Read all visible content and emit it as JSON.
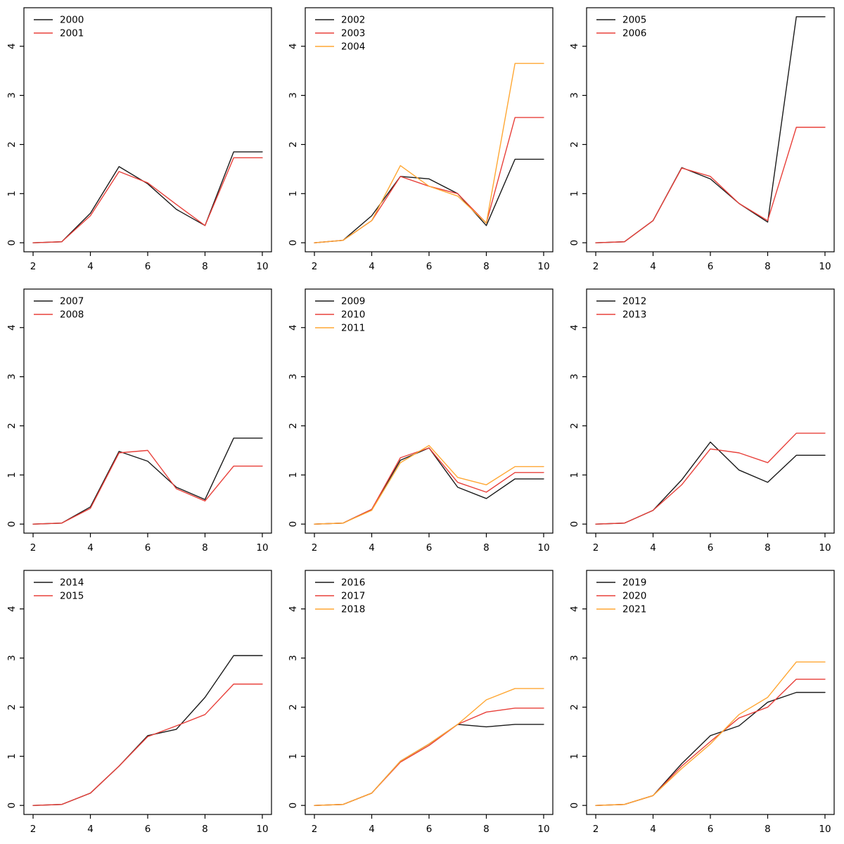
{
  "figure": {
    "title": "",
    "grid": "3x3 small multiples of line charts",
    "x_tick_labels": [
      "2",
      "4",
      "6",
      "8",
      "10"
    ],
    "y_tick_labels": [
      "0",
      "1",
      "2",
      "3",
      "4"
    ]
  },
  "colors": {
    "axis": "#000000",
    "series_black": "#1a1a1a",
    "series_red": "#e8403a",
    "series_orange": "#ffa733"
  },
  "chart_data": [
    {
      "type": "line",
      "x": [
        2,
        3,
        4,
        5,
        6,
        7,
        8,
        9,
        10
      ],
      "xticks": [
        2,
        4,
        6,
        8,
        10
      ],
      "yticks": [
        0,
        1,
        2,
        3,
        4
      ],
      "xlim": [
        2,
        10
      ],
      "ylim": [
        0,
        4.6
      ],
      "legend_position": "top-left",
      "series": [
        {
          "name": "2000",
          "color": "#1a1a1a",
          "values": [
            0,
            0.02,
            0.6,
            1.55,
            1.2,
            0.68,
            0.35,
            1.85,
            1.85
          ]
        },
        {
          "name": "2001",
          "color": "#e8403a",
          "values": [
            0,
            0.02,
            0.55,
            1.45,
            1.22,
            0.78,
            0.35,
            1.73,
            1.73
          ]
        }
      ]
    },
    {
      "type": "line",
      "x": [
        2,
        3,
        4,
        5,
        6,
        7,
        8,
        9,
        10
      ],
      "xticks": [
        2,
        4,
        6,
        8,
        10
      ],
      "yticks": [
        0,
        1,
        2,
        3,
        4
      ],
      "xlim": [
        2,
        10
      ],
      "ylim": [
        0,
        4.6
      ],
      "legend_position": "top-left",
      "series": [
        {
          "name": "2002",
          "color": "#1a1a1a",
          "values": [
            0,
            0.05,
            0.55,
            1.35,
            1.3,
            1.0,
            0.35,
            1.7,
            1.7
          ]
        },
        {
          "name": "2003",
          "color": "#e8403a",
          "values": [
            0,
            0.05,
            0.45,
            1.35,
            1.15,
            1.0,
            0.4,
            2.55,
            2.55
          ]
        },
        {
          "name": "2004",
          "color": "#ffa733",
          "values": [
            0,
            0.05,
            0.45,
            1.57,
            1.15,
            0.95,
            0.4,
            3.65,
            3.65
          ]
        }
      ]
    },
    {
      "type": "line",
      "x": [
        2,
        3,
        4,
        5,
        6,
        7,
        8,
        9,
        10
      ],
      "xticks": [
        2,
        4,
        6,
        8,
        10
      ],
      "yticks": [
        0,
        1,
        2,
        3,
        4
      ],
      "xlim": [
        2,
        10
      ],
      "ylim": [
        0,
        4.6
      ],
      "legend_position": "top-left",
      "series": [
        {
          "name": "2005",
          "color": "#1a1a1a",
          "values": [
            0,
            0.02,
            0.45,
            1.53,
            1.3,
            0.8,
            0.42,
            4.6,
            4.6
          ]
        },
        {
          "name": "2006",
          "color": "#e8403a",
          "values": [
            0,
            0.02,
            0.45,
            1.52,
            1.35,
            0.8,
            0.45,
            2.35,
            2.35
          ]
        }
      ]
    },
    {
      "type": "line",
      "x": [
        2,
        3,
        4,
        5,
        6,
        7,
        8,
        9,
        10
      ],
      "xticks": [
        2,
        4,
        6,
        8,
        10
      ],
      "yticks": [
        0,
        1,
        2,
        3,
        4
      ],
      "xlim": [
        2,
        10
      ],
      "ylim": [
        0,
        4.6
      ],
      "legend_position": "top-left",
      "series": [
        {
          "name": "2007",
          "color": "#1a1a1a",
          "values": [
            0,
            0.02,
            0.35,
            1.48,
            1.28,
            0.75,
            0.5,
            1.75,
            1.75
          ]
        },
        {
          "name": "2008",
          "color": "#e8403a",
          "values": [
            0,
            0.02,
            0.32,
            1.45,
            1.5,
            0.72,
            0.47,
            1.18,
            1.18
          ]
        }
      ]
    },
    {
      "type": "line",
      "x": [
        2,
        3,
        4,
        5,
        6,
        7,
        8,
        9,
        10
      ],
      "xticks": [
        2,
        4,
        6,
        8,
        10
      ],
      "yticks": [
        0,
        1,
        2,
        3,
        4
      ],
      "xlim": [
        2,
        10
      ],
      "ylim": [
        0,
        4.6
      ],
      "legend_position": "top-left",
      "series": [
        {
          "name": "2009",
          "color": "#1a1a1a",
          "values": [
            0,
            0.02,
            0.3,
            1.3,
            1.55,
            0.75,
            0.52,
            0.92,
            0.92
          ]
        },
        {
          "name": "2010",
          "color": "#e8403a",
          "values": [
            0,
            0.02,
            0.3,
            1.35,
            1.55,
            0.85,
            0.65,
            1.05,
            1.05
          ]
        },
        {
          "name": "2011",
          "color": "#ffa733",
          "values": [
            0,
            0.02,
            0.28,
            1.25,
            1.6,
            0.95,
            0.8,
            1.17,
            1.17
          ]
        }
      ]
    },
    {
      "type": "line",
      "x": [
        2,
        3,
        4,
        5,
        6,
        7,
        8,
        9,
        10
      ],
      "xticks": [
        2,
        4,
        6,
        8,
        10
      ],
      "yticks": [
        0,
        1,
        2,
        3,
        4
      ],
      "xlim": [
        2,
        10
      ],
      "ylim": [
        0,
        4.6
      ],
      "legend_position": "top-left",
      "series": [
        {
          "name": "2012",
          "color": "#1a1a1a",
          "values": [
            0,
            0.02,
            0.28,
            0.9,
            1.67,
            1.1,
            0.85,
            1.4,
            1.4
          ]
        },
        {
          "name": "2013",
          "color": "#e8403a",
          "values": [
            0,
            0.02,
            0.28,
            0.8,
            1.53,
            1.45,
            1.25,
            1.85,
            1.85
          ]
        }
      ]
    },
    {
      "type": "line",
      "x": [
        2,
        3,
        4,
        5,
        6,
        7,
        8,
        9,
        10
      ],
      "xticks": [
        2,
        4,
        6,
        8,
        10
      ],
      "yticks": [
        0,
        1,
        2,
        3,
        4
      ],
      "xlim": [
        2,
        10
      ],
      "ylim": [
        0,
        4.6
      ],
      "legend_position": "top-left",
      "series": [
        {
          "name": "2014",
          "color": "#1a1a1a",
          "values": [
            0,
            0.02,
            0.25,
            0.8,
            1.42,
            1.55,
            2.2,
            3.05,
            3.05
          ]
        },
        {
          "name": "2015",
          "color": "#e8403a",
          "values": [
            0,
            0.02,
            0.25,
            0.8,
            1.4,
            1.62,
            1.85,
            2.47,
            2.47
          ]
        }
      ]
    },
    {
      "type": "line",
      "x": [
        2,
        3,
        4,
        5,
        6,
        7,
        8,
        9,
        10
      ],
      "xticks": [
        2,
        4,
        6,
        8,
        10
      ],
      "yticks": [
        0,
        1,
        2,
        3,
        4
      ],
      "xlim": [
        2,
        10
      ],
      "ylim": [
        0,
        4.6
      ],
      "legend_position": "top-left",
      "series": [
        {
          "name": "2016",
          "color": "#1a1a1a",
          "values": [
            0,
            0.02,
            0.25,
            0.9,
            1.25,
            1.65,
            1.6,
            1.65,
            1.65
          ]
        },
        {
          "name": "2017",
          "color": "#e8403a",
          "values": [
            0,
            0.02,
            0.25,
            0.88,
            1.22,
            1.65,
            1.9,
            1.98,
            1.98
          ]
        },
        {
          "name": "2018",
          "color": "#ffa733",
          "values": [
            0,
            0.02,
            0.25,
            0.9,
            1.25,
            1.65,
            2.15,
            2.38,
            2.38
          ]
        }
      ]
    },
    {
      "type": "line",
      "x": [
        2,
        3,
        4,
        5,
        6,
        7,
        8,
        9,
        10
      ],
      "xticks": [
        2,
        4,
        6,
        8,
        10
      ],
      "yticks": [
        0,
        1,
        2,
        3,
        4
      ],
      "xlim": [
        2,
        10
      ],
      "ylim": [
        0,
        4.6
      ],
      "legend_position": "top-left",
      "series": [
        {
          "name": "2019",
          "color": "#1a1a1a",
          "values": [
            0,
            0.02,
            0.2,
            0.85,
            1.42,
            1.62,
            2.1,
            2.3,
            2.3
          ]
        },
        {
          "name": "2020",
          "color": "#e8403a",
          "values": [
            0,
            0.02,
            0.2,
            0.8,
            1.3,
            1.78,
            2.0,
            2.57,
            2.57
          ]
        },
        {
          "name": "2021",
          "color": "#ffa733",
          "values": [
            0,
            0.02,
            0.2,
            0.75,
            1.25,
            1.85,
            2.2,
            2.92,
            2.92
          ]
        }
      ]
    }
  ]
}
